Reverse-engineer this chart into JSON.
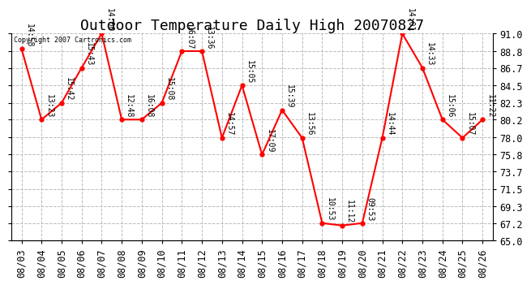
{
  "title": "Outdoor Temperature Daily High 20070827",
  "copyright_text": "Copyright 2007 Cartronics.com",
  "dates": [
    "08/03",
    "08/04",
    "08/05",
    "08/06",
    "08/07",
    "08/08",
    "08/09",
    "08/10",
    "08/11",
    "08/12",
    "08/13",
    "08/14",
    "08/15",
    "08/16",
    "08/17",
    "08/18",
    "08/19",
    "08/20",
    "08/21",
    "08/22",
    "08/23",
    "08/24",
    "08/25",
    "08/26"
  ],
  "values": [
    89.1,
    80.2,
    82.3,
    86.7,
    91.0,
    80.2,
    80.2,
    82.3,
    88.8,
    88.8,
    77.9,
    84.5,
    75.8,
    81.4,
    77.9,
    67.2,
    66.9,
    67.2,
    77.9,
    91.0,
    86.7,
    80.2,
    77.9,
    80.2
  ],
  "labels": [
    "14:58",
    "13:23",
    "15:42",
    "15:43",
    "14:00",
    "12:48",
    "16:08",
    "15:08",
    "16:07",
    "13:36",
    "14:57",
    "15:05",
    "17:09",
    "15:39",
    "13:56",
    "10:53",
    "11:12",
    "09:53",
    "14:44",
    "14:01",
    "14:33",
    "15:06",
    "15:07",
    "11:22"
  ],
  "line_color": "#ff0000",
  "marker_color": "#ff0000",
  "bg_color": "#ffffff",
  "grid_color": "#bbbbbb",
  "ylim": [
    65.0,
    91.0
  ],
  "yticks": [
    65.0,
    67.2,
    69.3,
    71.5,
    73.7,
    75.8,
    78.0,
    80.2,
    82.3,
    84.5,
    86.7,
    88.8,
    91.0
  ],
  "title_fontsize": 13,
  "label_fontsize": 7,
  "tick_fontsize": 8.5,
  "marker_size": 3.5,
  "line_width": 1.5
}
